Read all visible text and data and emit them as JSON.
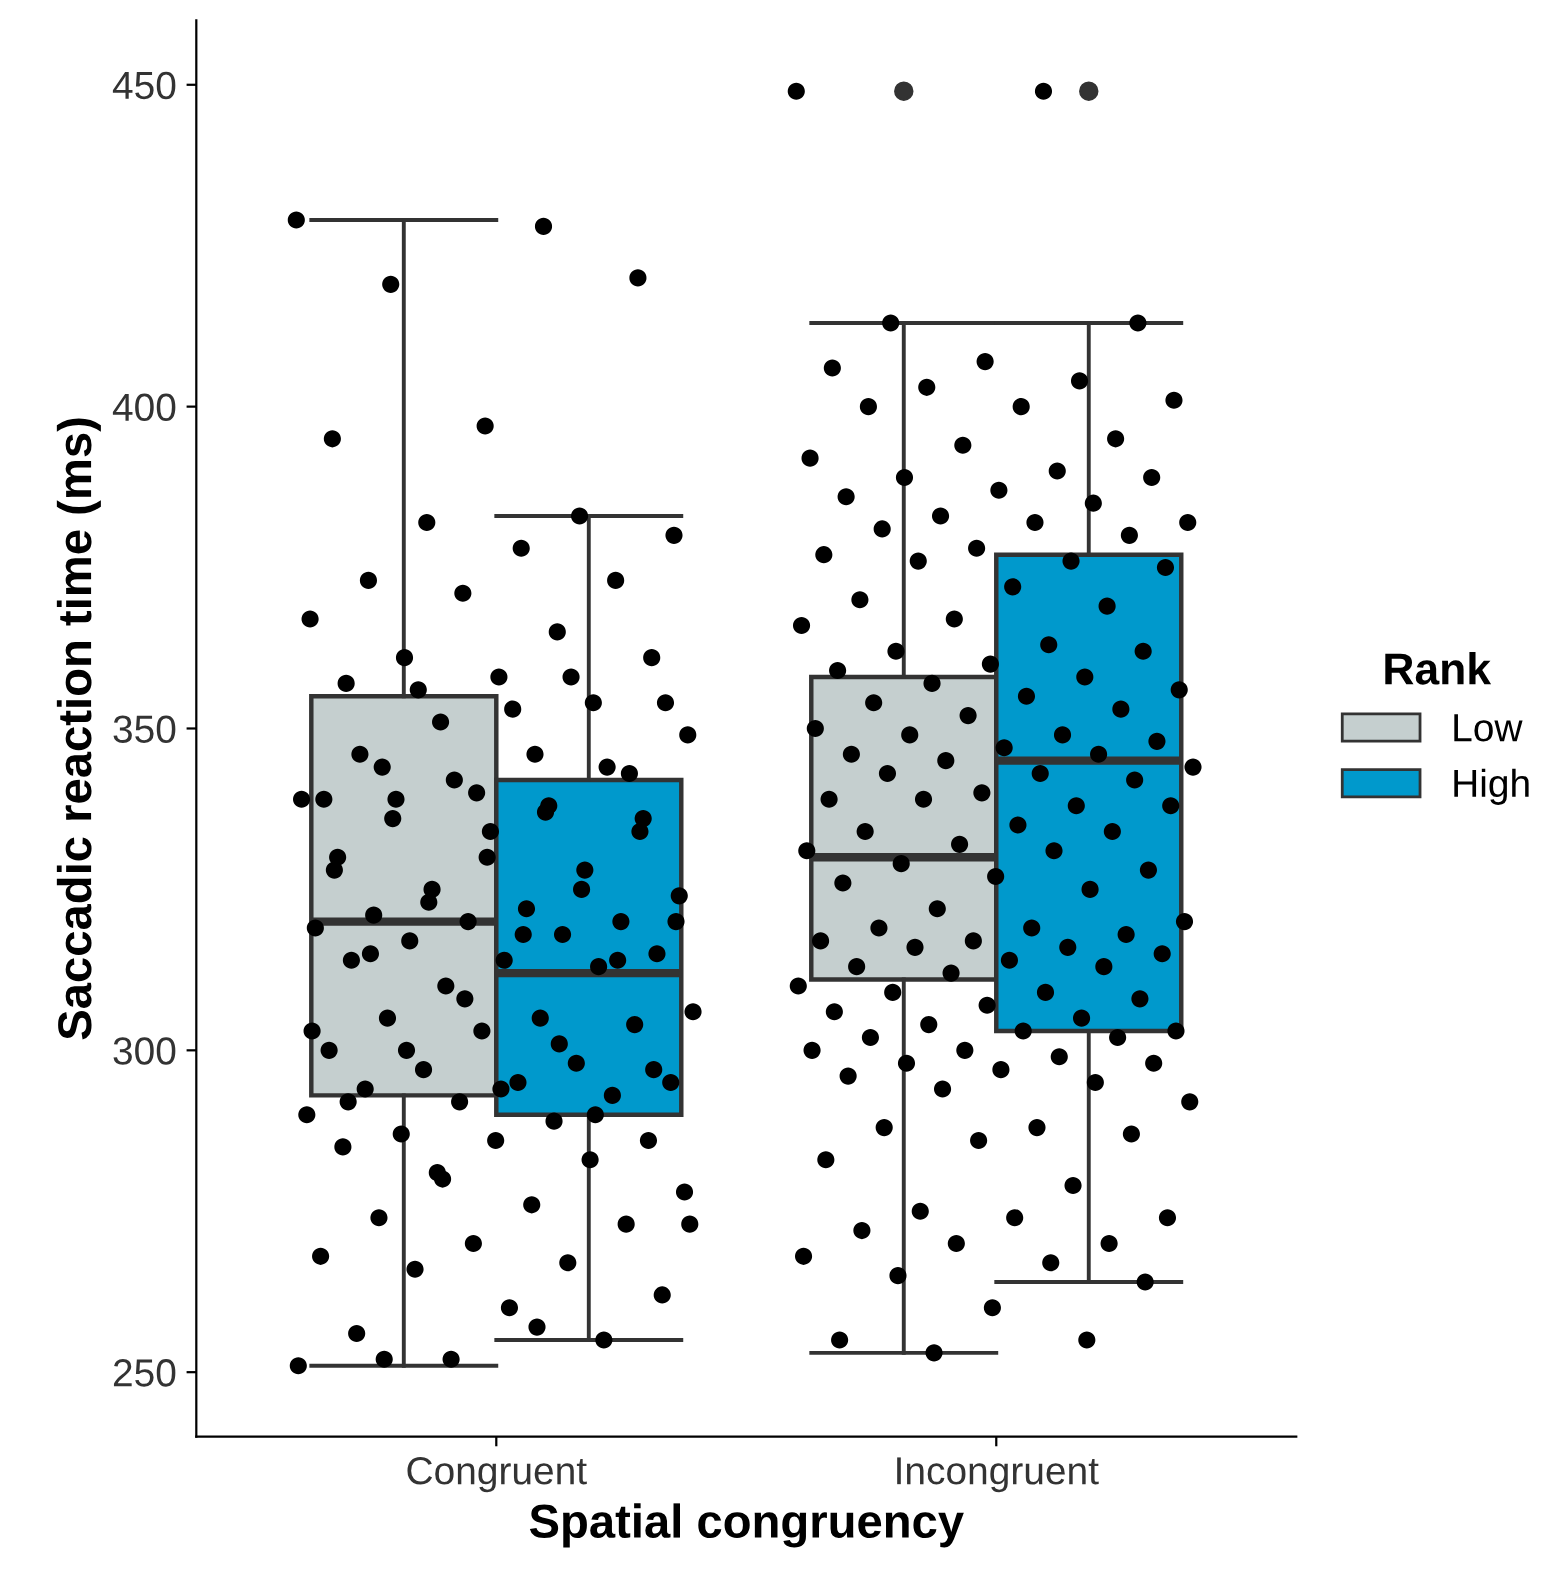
{
  "chart_data": {
    "type": "box",
    "xlabel": "Spatial congruency",
    "ylabel": "Saccadic reaction time (ms)",
    "legend_title": "Rank",
    "legend": "right",
    "grid": false,
    "categories": [
      "Congruent",
      "Incongruent"
    ],
    "ylim": [
      240,
      460
    ],
    "yticks": [
      250,
      300,
      350,
      400,
      450
    ],
    "series": [
      {
        "name": "Low",
        "color": "#c5cfcf",
        "boxes": [
          {
            "low": 251,
            "q1": 293,
            "median": 320,
            "q3": 355,
            "high": 429
          },
          {
            "low": 253,
            "q1": 311,
            "median": 330,
            "q3": 358,
            "high": 413,
            "outliers": [
              449
            ]
          }
        ]
      },
      {
        "name": "High",
        "color": "#0099cc",
        "boxes": [
          {
            "low": 255,
            "q1": 290,
            "median": 312,
            "q3": 342,
            "high": 383
          },
          {
            "low": 264,
            "q1": 303,
            "median": 345,
            "q3": 377,
            "high": 413,
            "outliers": [
              449
            ]
          }
        ]
      },
      {
        "type": "scatter",
        "color": "#000000",
        "marker": "circle",
        "x": [
          "Congruent",
          "Congruent",
          "Congruent",
          "Congruent",
          "Congruent",
          "Congruent",
          "Congruent",
          "Congruent",
          "Congruent",
          "Congruent",
          "Congruent",
          "Congruent",
          "Congruent",
          "Congruent",
          "Congruent",
          "Congruent",
          "Congruent",
          "Congruent",
          "Congruent",
          "Congruent",
          "Congruent",
          "Congruent",
          "Congruent",
          "Congruent",
          "Congruent",
          "Congruent",
          "Congruent",
          "Congruent",
          "Congruent",
          "Congruent",
          "Congruent",
          "Congruent",
          "Congruent",
          "Congruent",
          "Congruent",
          "Congruent",
          "Congruent",
          "Congruent",
          "Congruent",
          "Congruent",
          "Congruent",
          "Congruent",
          "Congruent",
          "Congruent",
          "Congruent",
          "Congruent",
          "Congruent",
          "Congruent",
          "Congruent",
          "Congruent",
          "Congruent",
          "Congruent",
          "Congruent",
          "Congruent",
          "Congruent",
          "Congruent",
          "Congruent",
          "Congruent",
          "Congruent",
          "Congruent",
          "Congruent",
          "Congruent",
          "Congruent",
          "Congruent",
          "Congruent",
          "Congruent",
          "Congruent",
          "Congruent",
          "Congruent",
          "Congruent",
          "Congruent",
          "Congruent",
          "Congruent",
          "Congruent",
          "Congruent",
          "Congruent",
          "Congruent",
          "Congruent",
          "Congruent",
          "Congruent",
          "Congruent",
          "Congruent",
          "Congruent",
          "Congruent",
          "Congruent",
          "Congruent",
          "Congruent",
          "Congruent",
          "Congruent",
          "Congruent",
          "Congruent",
          "Congruent",
          "Congruent",
          "Congruent",
          "Congruent",
          "Congruent",
          "Congruent",
          "Congruent",
          "Congruent",
          "Congruent",
          "Congruent",
          "Congruent",
          "Congruent",
          "Congruent",
          "Congruent",
          "Congruent",
          "Congruent",
          "Congruent",
          "Congruent",
          "Congruent",
          "Congruent",
          "Congruent",
          "Congruent"
        ],
        "values": [
          429,
          428,
          419,
          420,
          397,
          395,
          383,
          382,
          380,
          378,
          373,
          373,
          371,
          367,
          365,
          361,
          361,
          358,
          357,
          354,
          351,
          349,
          346,
          344,
          343,
          340,
          339,
          358,
          356,
          354,
          353,
          346,
          344,
          342,
          339,
          338,
          339,
          336,
          334,
          330,
          328,
          325,
          324,
          322,
          321,
          320,
          320,
          319,
          318,
          317,
          315,
          314,
          314,
          313,
          310,
          306,
          305,
          305,
          304,
          303,
          300,
          298,
          297,
          295,
          295,
          294,
          293,
          292,
          290,
          289,
          287,
          286,
          286,
          285,
          283,
          281,
          278,
          276,
          274,
          273,
          270,
          268,
          267,
          266,
          262,
          260,
          256,
          255,
          252,
          251,
          337,
          336,
          334,
          330,
          328,
          325,
          323,
          320,
          318,
          315,
          314,
          308,
          303,
          301,
          300,
          297,
          294,
          292,
          290,
          280,
          273,
          257,
          252
        ]
      },
      {
        "type": "scatter",
        "color": "#000000",
        "marker": "circle",
        "x": [
          "Incongruent",
          "Incongruent",
          "Incongruent",
          "Incongruent",
          "Incongruent",
          "Incongruent",
          "Incongruent",
          "Incongruent",
          "Incongruent",
          "Incongruent",
          "Incongruent",
          "Incongruent",
          "Incongruent",
          "Incongruent",
          "Incongruent",
          "Incongruent",
          "Incongruent",
          "Incongruent",
          "Incongruent",
          "Incongruent",
          "Incongruent",
          "Incongruent",
          "Incongruent",
          "Incongruent",
          "Incongruent",
          "Incongruent",
          "Incongruent",
          "Incongruent",
          "Incongruent",
          "Incongruent",
          "Incongruent",
          "Incongruent",
          "Incongruent",
          "Incongruent",
          "Incongruent",
          "Incongruent",
          "Incongruent",
          "Incongruent",
          "Incongruent",
          "Incongruent",
          "Incongruent",
          "Incongruent",
          "Incongruent",
          "Incongruent",
          "Incongruent",
          "Incongruent",
          "Incongruent",
          "Incongruent",
          "Incongruent",
          "Incongruent",
          "Incongruent",
          "Incongruent",
          "Incongruent",
          "Incongruent",
          "Incongruent",
          "Incongruent",
          "Incongruent",
          "Incongruent",
          "Incongruent",
          "Incongruent",
          "Incongruent",
          "Incongruent",
          "Incongruent",
          "Incongruent",
          "Incongruent",
          "Incongruent",
          "Incongruent",
          "Incongruent",
          "Incongruent",
          "Incongruent",
          "Incongruent",
          "Incongruent",
          "Incongruent",
          "Incongruent",
          "Incongruent",
          "Incongruent",
          "Incongruent",
          "Incongruent",
          "Incongruent",
          "Incongruent",
          "Incongruent",
          "Incongruent",
          "Incongruent",
          "Incongruent",
          "Incongruent",
          "Incongruent",
          "Incongruent",
          "Incongruent",
          "Incongruent",
          "Incongruent",
          "Incongruent",
          "Incongruent",
          "Incongruent",
          "Incongruent",
          "Incongruent",
          "Incongruent",
          "Incongruent",
          "Incongruent",
          "Incongruent",
          "Incongruent",
          "Incongruent",
          "Incongruent",
          "Incongruent",
          "Incongruent",
          "Incongruent",
          "Incongruent",
          "Incongruent",
          "Incongruent",
          "Incongruent",
          "Incongruent",
          "Incongruent",
          "Incongruent",
          "Incongruent",
          "Incongruent",
          "Incongruent",
          "Incongruent",
          "Incongruent",
          "Incongruent",
          "Incongruent",
          "Incongruent",
          "Incongruent",
          "Incongruent",
          "Incongruent",
          "Incongruent",
          "Incongruent",
          "Incongruent",
          "Incongruent",
          "Incongruent",
          "Incongruent",
          "Incongruent",
          "Incongruent"
        ],
        "values": [
          449,
          449,
          413,
          413,
          407,
          406,
          404,
          403,
          401,
          400,
          400,
          395,
          394,
          392,
          390,
          389,
          389,
          387,
          386,
          385,
          383,
          382,
          382,
          381,
          380,
          378,
          377,
          376,
          376,
          375,
          372,
          370,
          369,
          367,
          366,
          363,
          362,
          362,
          360,
          359,
          358,
          357,
          356,
          355,
          354,
          353,
          352,
          350,
          349,
          349,
          348,
          347,
          346,
          346,
          345,
          344,
          343,
          343,
          342,
          340,
          339,
          338,
          339,
          338,
          335,
          334,
          334,
          332,
          331,
          331,
          329,
          328,
          327,
          326,
          325,
          322,
          320,
          319,
          319,
          318,
          317,
          317,
          316,
          316,
          315,
          314,
          313,
          313,
          312,
          310,
          309,
          309,
          308,
          307,
          306,
          305,
          304,
          303,
          303,
          302,
          302,
          300,
          300,
          299,
          298,
          298,
          297,
          296,
          295,
          294,
          292,
          288,
          288,
          287,
          286,
          283,
          279,
          275,
          274,
          274,
          272,
          270,
          270,
          268,
          267,
          265,
          264,
          260,
          255,
          255,
          253
        ]
      }
    ]
  }
}
